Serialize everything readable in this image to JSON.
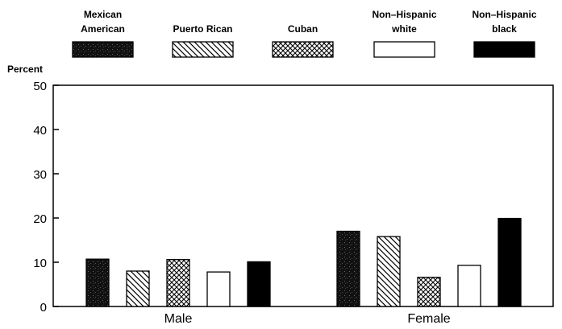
{
  "chart_data": {
    "type": "bar",
    "title": "",
    "xlabel": "",
    "ylabel": "Percent",
    "ylim": [
      0,
      50
    ],
    "yticks": [
      0,
      10,
      20,
      30,
      40,
      50
    ],
    "grid": false,
    "legend_position": "top",
    "categories": [
      "Male",
      "Female"
    ],
    "series": [
      {
        "name": "Mexican American",
        "legend_lines": [
          "Mexican",
          "American"
        ],
        "pattern": "speckled-dark",
        "values": [
          10.7,
          17.0
        ]
      },
      {
        "name": "Puerto Rican",
        "legend_lines": [
          "Puerto Rican"
        ],
        "pattern": "diagonal-hatch",
        "values": [
          8.0,
          15.8
        ]
      },
      {
        "name": "Cuban",
        "legend_lines": [
          "Cuban"
        ],
        "pattern": "crosshatch",
        "values": [
          10.6,
          6.6
        ]
      },
      {
        "name": "Non-Hispanic white",
        "legend_lines": [
          "Non–Hispanic",
          "white"
        ],
        "pattern": "white",
        "values": [
          7.8,
          9.3
        ]
      },
      {
        "name": "Non-Hispanic black",
        "legend_lines": [
          "Non–Hispanic",
          "black"
        ],
        "pattern": "solid-black",
        "values": [
          10.1,
          19.9
        ]
      }
    ]
  }
}
